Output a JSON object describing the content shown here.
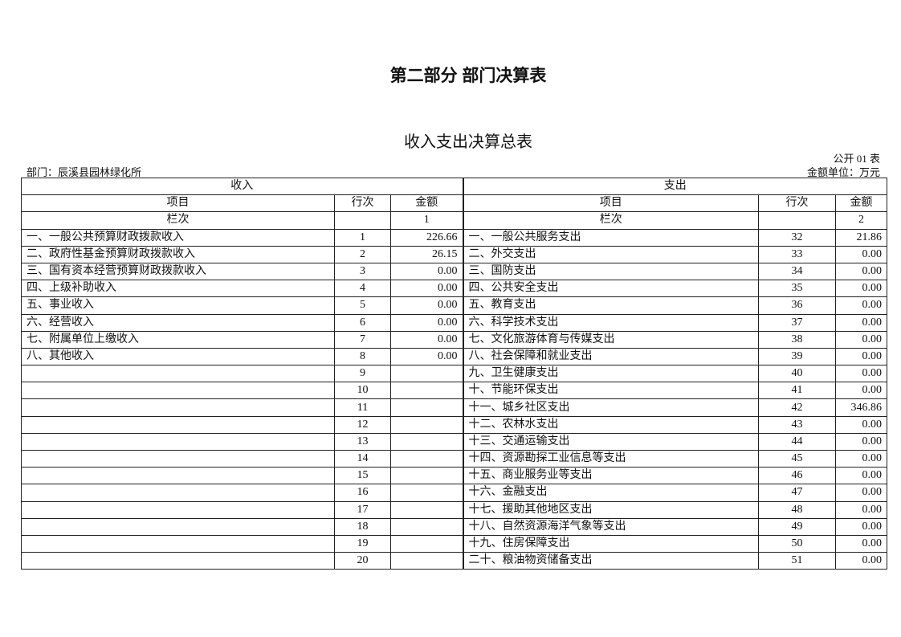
{
  "title": "第二部分 部门决算表",
  "subtitle": "收入支出决算总表",
  "table_no": "公开 01 表",
  "department": "部门：辰溪县园林绿化所",
  "unit": "金额单位：万元",
  "headers": {
    "income": "收入",
    "expense": "支出",
    "item": "项目",
    "line_no": "行次",
    "amount": "金额",
    "column_no": "栏次",
    "income_col": "1",
    "expense_col": "2"
  },
  "rows": [
    {
      "in_item": "一、一般公共预算财政拨款收入",
      "in_no": "1",
      "in_amt": "226.66",
      "ex_item": "一、一般公共服务支出",
      "ex_no": "32",
      "ex_amt": "21.86"
    },
    {
      "in_item": "二、政府性基金预算财政拨款收入",
      "in_no": "2",
      "in_amt": "26.15",
      "ex_item": "二、外交支出",
      "ex_no": "33",
      "ex_amt": "0.00"
    },
    {
      "in_item": "三、国有资本经营预算财政拨款收入",
      "in_no": "3",
      "in_amt": "0.00",
      "ex_item": "三、国防支出",
      "ex_no": "34",
      "ex_amt": "0.00"
    },
    {
      "in_item": "四、上级补助收入",
      "in_no": "4",
      "in_amt": "0.00",
      "ex_item": "四、公共安全支出",
      "ex_no": "35",
      "ex_amt": "0.00"
    },
    {
      "in_item": "五、事业收入",
      "in_no": "5",
      "in_amt": "0.00",
      "ex_item": "五、教育支出",
      "ex_no": "36",
      "ex_amt": "0.00"
    },
    {
      "in_item": "六、经营收入",
      "in_no": "6",
      "in_amt": "0.00",
      "ex_item": "六、科学技术支出",
      "ex_no": "37",
      "ex_amt": "0.00"
    },
    {
      "in_item": "七、附属单位上缴收入",
      "in_no": "7",
      "in_amt": "0.00",
      "ex_item": "七、文化旅游体育与传媒支出",
      "ex_no": "38",
      "ex_amt": "0.00"
    },
    {
      "in_item": "八、其他收入",
      "in_no": "8",
      "in_amt": "0.00",
      "ex_item": "八、社会保障和就业支出",
      "ex_no": "39",
      "ex_amt": "0.00"
    },
    {
      "in_item": "",
      "in_no": "9",
      "in_amt": "",
      "ex_item": "九、卫生健康支出",
      "ex_no": "40",
      "ex_amt": "0.00"
    },
    {
      "in_item": "",
      "in_no": "10",
      "in_amt": "",
      "ex_item": "十、节能环保支出",
      "ex_no": "41",
      "ex_amt": "0.00"
    },
    {
      "in_item": "",
      "in_no": "11",
      "in_amt": "",
      "ex_item": "十一、城乡社区支出",
      "ex_no": "42",
      "ex_amt": "346.86"
    },
    {
      "in_item": "",
      "in_no": "12",
      "in_amt": "",
      "ex_item": "十二、农林水支出",
      "ex_no": "43",
      "ex_amt": "0.00"
    },
    {
      "in_item": "",
      "in_no": "13",
      "in_amt": "",
      "ex_item": "十三、交通运输支出",
      "ex_no": "44",
      "ex_amt": "0.00"
    },
    {
      "in_item": "",
      "in_no": "14",
      "in_amt": "",
      "ex_item": "十四、资源勘探工业信息等支出",
      "ex_no": "45",
      "ex_amt": "0.00"
    },
    {
      "in_item": "",
      "in_no": "15",
      "in_amt": "",
      "ex_item": "十五、商业服务业等支出",
      "ex_no": "46",
      "ex_amt": "0.00"
    },
    {
      "in_item": "",
      "in_no": "16",
      "in_amt": "",
      "ex_item": "十六、金融支出",
      "ex_no": "47",
      "ex_amt": "0.00"
    },
    {
      "in_item": "",
      "in_no": "17",
      "in_amt": "",
      "ex_item": "十七、援助其他地区支出",
      "ex_no": "48",
      "ex_amt": "0.00"
    },
    {
      "in_item": "",
      "in_no": "18",
      "in_amt": "",
      "ex_item": "十八、自然资源海洋气象等支出",
      "ex_no": "49",
      "ex_amt": "0.00"
    },
    {
      "in_item": "",
      "in_no": "19",
      "in_amt": "",
      "ex_item": "十九、住房保障支出",
      "ex_no": "50",
      "ex_amt": "0.00"
    },
    {
      "in_item": "",
      "in_no": "20",
      "in_amt": "",
      "ex_item": "二十、粮油物资储备支出",
      "ex_no": "51",
      "ex_amt": "0.00"
    }
  ]
}
